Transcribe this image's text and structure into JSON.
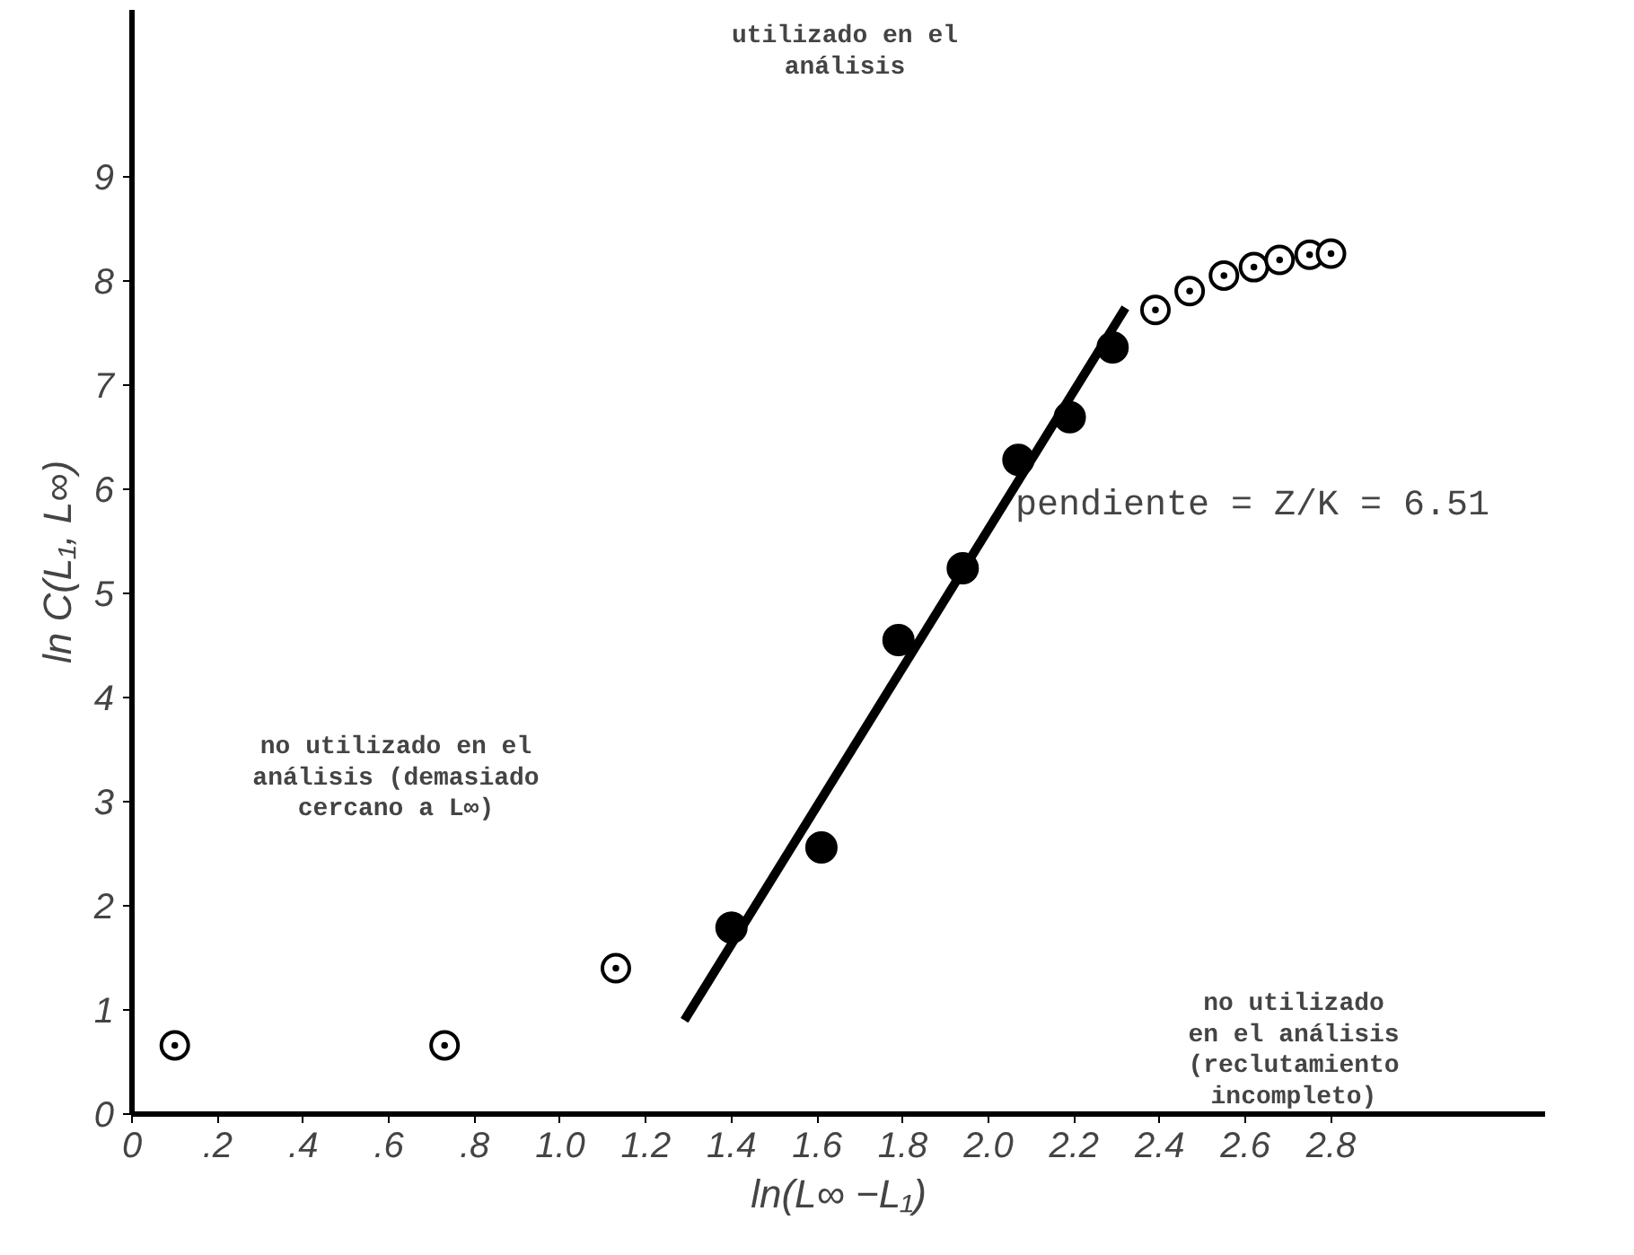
{
  "chart_data": {
    "type": "scatter",
    "xlabel": "ln(L∞ −L₁)",
    "ylabel": "ln C(L₁, L∞)",
    "xlim": [
      0,
      3.3
    ],
    "ylim": [
      0,
      10.6
    ],
    "xticks": [
      {
        "value": 0,
        "label": "0"
      },
      {
        "value": 0.2,
        "label": ".2"
      },
      {
        "value": 0.4,
        "label": ".4"
      },
      {
        "value": 0.6,
        "label": ".6"
      },
      {
        "value": 0.8,
        "label": ".8"
      },
      {
        "value": 1.0,
        "label": "1.0"
      },
      {
        "value": 1.2,
        "label": "1.2"
      },
      {
        "value": 1.4,
        "label": "1.4"
      },
      {
        "value": 1.6,
        "label": "1.6"
      },
      {
        "value": 1.8,
        "label": "1.8"
      },
      {
        "value": 2.0,
        "label": "2.0"
      },
      {
        "value": 2.2,
        "label": "2.2"
      },
      {
        "value": 2.4,
        "label": "2.4"
      },
      {
        "value": 2.6,
        "label": "2.6"
      },
      {
        "value": 2.8,
        "label": "2.8"
      }
    ],
    "yticks": [
      0,
      1,
      2,
      3,
      4,
      5,
      6,
      7,
      8,
      9
    ],
    "grid": false,
    "series": [
      {
        "type": "scatter",
        "marker": "circle",
        "color": "#000000",
        "x": [
          0.1,
          0.73,
          1.13,
          2.39,
          2.47,
          2.55,
          2.62,
          2.68,
          2.75,
          2.8
        ],
        "values": [
          0.66,
          0.66,
          1.4,
          7.72,
          7.9,
          8.05,
          8.13,
          8.2,
          8.25,
          8.26
        ]
      },
      {
        "type": "scatter",
        "marker": "circle",
        "color": "#000000",
        "x": [
          1.4,
          1.61,
          1.79,
          1.94,
          2.07,
          2.19,
          2.29
        ],
        "values": [
          1.79,
          2.56,
          4.55,
          5.24,
          6.28,
          6.69,
          7.36
        ]
      },
      {
        "type": "line",
        "color": "#000000",
        "x": [
          1.29,
          2.32
        ],
        "values": [
          0.9,
          7.74
        ]
      }
    ],
    "annotations": [
      "utilizado en el\nanálisis",
      "pendiente = Z/K = 6.51",
      "no utilizado en el\nanálisis (demasiado\ncercano a L∞)",
      "no utilizado\nen el análisis\n(reclutamiento\nincompleto)"
    ]
  }
}
